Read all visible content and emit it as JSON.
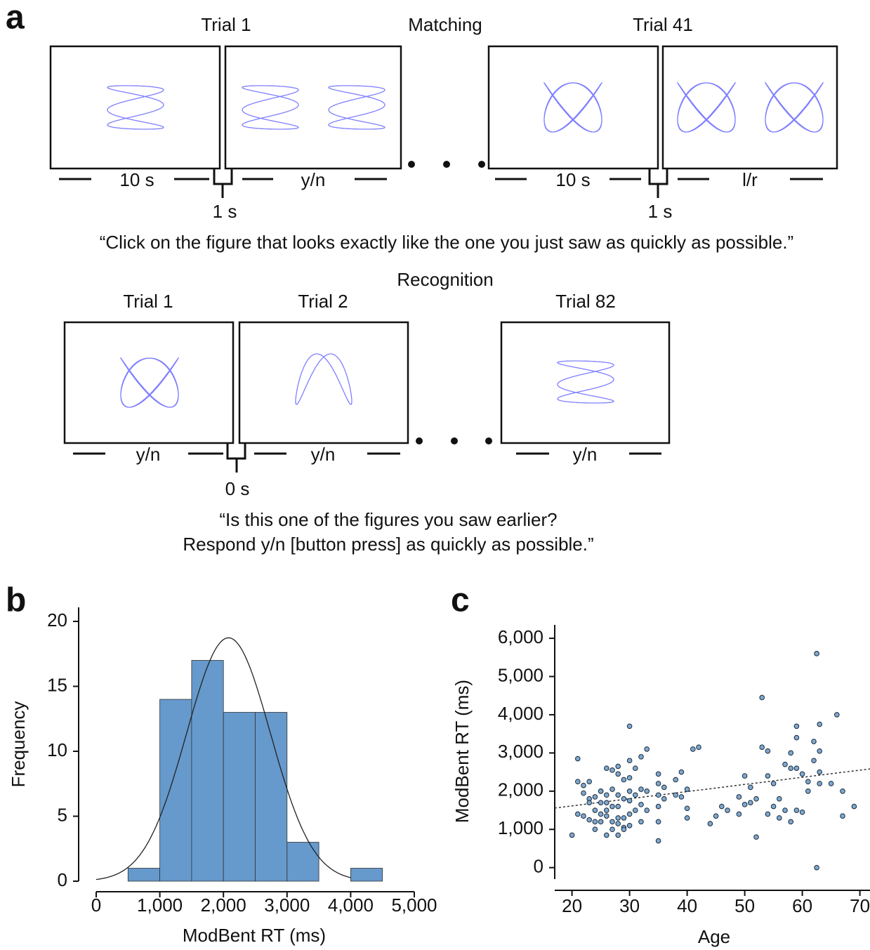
{
  "diagram": {
    "label": "a",
    "matching": {
      "title": "Matching",
      "trial_first": "Trial 1",
      "trial_last": "Trial 41",
      "durations": [
        "10 s",
        "y/n",
        "10 s",
        "l/r"
      ],
      "gaps": [
        "1 s",
        "1 s"
      ],
      "instruction": "“Click on the figure that looks exactly like the one you just saw as quickly as possible.”"
    },
    "recognition": {
      "title": "Recognition",
      "trials": [
        "Trial 1",
        "Trial 2",
        "Trial 82"
      ],
      "durations": [
        "y/n",
        "y/n",
        "y/n"
      ],
      "gap": "0 s",
      "instruction_lines": [
        "“Is this one of the figures you saw earlier?",
        "Respond y/n [button press] as quickly as possible.”"
      ]
    }
  },
  "chart_data": [
    {
      "type": "histogram",
      "panel_label": "b",
      "x_label": "ModBent RT (ms)",
      "y_label": "Frequency",
      "bins": [
        500,
        1000,
        1500,
        2000,
        2500,
        3000,
        3500,
        4000,
        4500
      ],
      "values": [
        1,
        14,
        17,
        13,
        13,
        3,
        0,
        1
      ],
      "color": "#6699cc",
      "fit": {
        "mean": 2080,
        "sd": 660
      },
      "xlim": [
        0,
        5000
      ],
      "ylim": [
        0,
        20
      ],
      "xticks": [
        0,
        {
          "value": 1000,
          "label": "1,000"
        },
        {
          "value": 2000,
          "label": "2,000"
        },
        {
          "value": 3000,
          "label": "3,000"
        },
        {
          "value": 4000,
          "label": "4,000"
        },
        {
          "value": 5000,
          "label": "5,000"
        }
      ],
      "yticks": [
        0,
        5,
        10,
        15,
        20
      ]
    },
    {
      "type": "scatter",
      "panel_label": "c",
      "x_label": "Age",
      "y_label": "ModBent RT (ms)",
      "color": "#7fa8cf",
      "x": [
        20,
        21,
        21,
        21,
        22,
        22,
        22,
        23,
        23,
        23,
        23,
        24,
        24,
        24,
        24,
        25,
        25,
        25,
        25,
        25,
        26,
        26,
        26,
        26,
        26,
        26,
        27,
        27,
        27,
        27,
        27,
        28,
        28,
        28,
        28,
        28,
        28,
        28,
        29,
        29,
        29,
        29,
        29,
        30,
        30,
        30,
        30,
        30,
        30,
        30,
        31,
        31,
        31,
        32,
        32,
        32,
        32,
        33,
        33,
        33,
        35,
        35,
        35,
        35,
        35,
        35,
        36,
        36,
        38,
        38,
        39,
        39,
        40,
        40,
        40,
        41,
        42,
        44,
        45,
        46,
        47,
        49,
        49,
        50,
        50,
        51,
        51,
        52,
        52,
        53,
        53,
        54,
        54,
        54,
        55,
        55,
        56,
        56,
        57,
        57,
        58,
        58,
        58,
        59,
        59,
        59,
        59,
        60,
        60,
        61,
        61,
        62,
        62,
        63,
        63,
        63,
        63,
        62.5,
        62.5,
        65,
        66,
        67,
        67,
        69
      ],
      "values": [
        850,
        2850,
        1400,
        2250,
        1350,
        2150,
        1950,
        1800,
        1700,
        2250,
        1250,
        1500,
        1850,
        1200,
        1000,
        1700,
        2000,
        1400,
        1200,
        2000,
        850,
        1350,
        1700,
        1900,
        2600,
        1500,
        1200,
        1600,
        2050,
        1000,
        2550,
        850,
        1150,
        1300,
        1600,
        1900,
        2450,
        2650,
        1050,
        1300,
        1800,
        2300,
        1000,
        1100,
        1400,
        1750,
        2000,
        2350,
        3700,
        2800,
        1500,
        1900,
        2600,
        1200,
        1650,
        2050,
        2900,
        3100,
        2000,
        1500,
        700,
        1200,
        1600,
        1900,
        2200,
        2450,
        1800,
        2100,
        1900,
        2300,
        2500,
        1850,
        1300,
        1550,
        2050,
        3100,
        3150,
        1150,
        1350,
        1600,
        1500,
        1400,
        1850,
        2400,
        1650,
        1700,
        2100,
        800,
        1800,
        4450,
        3150,
        3050,
        1400,
        2400,
        1600,
        2200,
        1300,
        1800,
        1500,
        2700,
        1200,
        2600,
        3000,
        2600,
        3400,
        3700,
        1500,
        2450,
        1450,
        2250,
        2000,
        2800,
        3300,
        3050,
        3750,
        2200,
        2500,
        5600,
        0,
        2200,
        4000,
        2000,
        1350,
        1600
      ],
      "trend": {
        "slope": 18.7,
        "intercept": 1241
      },
      "xlim": [
        17,
        72
      ],
      "ylim": [
        -300,
        6350
      ],
      "xticks": [
        20,
        30,
        40,
        50,
        60,
        70
      ],
      "yticks": [
        0,
        {
          "value": 1000,
          "label": "1,000"
        },
        {
          "value": 2000,
          "label": "2,000"
        },
        {
          "value": 3000,
          "label": "3,000"
        },
        {
          "value": 4000,
          "label": "4,000"
        },
        {
          "value": 5000,
          "label": "5,000"
        },
        {
          "value": 6000,
          "label": "6,000"
        }
      ]
    }
  ]
}
